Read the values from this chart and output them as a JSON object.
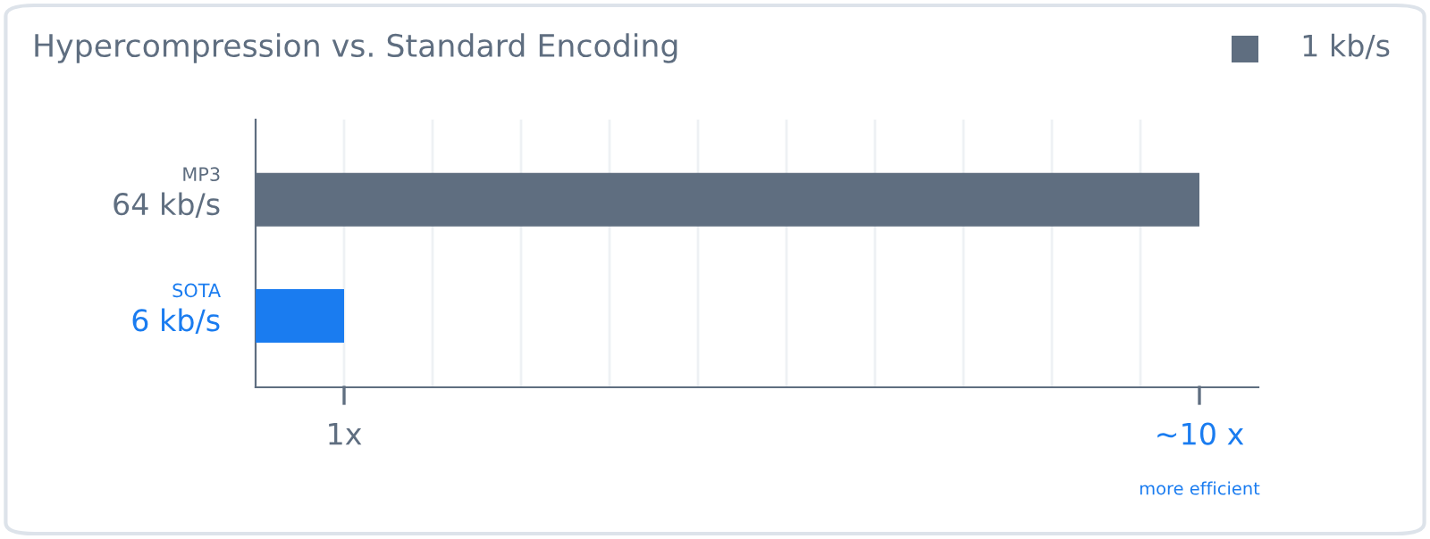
{
  "chart_data": {
    "type": "bar",
    "orientation": "horizontal",
    "title": "Hypercompression vs. Standard Encoding",
    "categories": [
      "MP3",
      "SOTA"
    ],
    "values": [
      64,
      6
    ],
    "colors": [
      "#5f6e80",
      "#1a7cf0"
    ],
    "value_labels": [
      "64 kb/s",
      "6 kb/s"
    ],
    "xlim": [
      0,
      68
    ],
    "ref_lines": [
      {
        "axis": "x",
        "value": 6,
        "color": "#eef1f4"
      },
      {
        "axis": "x",
        "value": 12,
        "color": "#eef1f4"
      },
      {
        "axis": "x",
        "value": 18,
        "color": "#eef1f4"
      },
      {
        "axis": "x",
        "value": 24,
        "color": "#eef1f4"
      },
      {
        "axis": "x",
        "value": 30,
        "color": "#eef1f4"
      },
      {
        "axis": "x",
        "value": 36,
        "color": "#eef1f4"
      },
      {
        "axis": "x",
        "value": 42,
        "color": "#eef1f4"
      },
      {
        "axis": "x",
        "value": 48,
        "color": "#eef1f4"
      },
      {
        "axis": "x",
        "value": 54,
        "color": "#eef1f4"
      },
      {
        "axis": "x",
        "value": 60,
        "color": "#eef1f4"
      }
    ],
    "annotations": [
      "1 kb/s",
      "1x",
      "~10 x",
      "more efficient"
    ]
  }
}
